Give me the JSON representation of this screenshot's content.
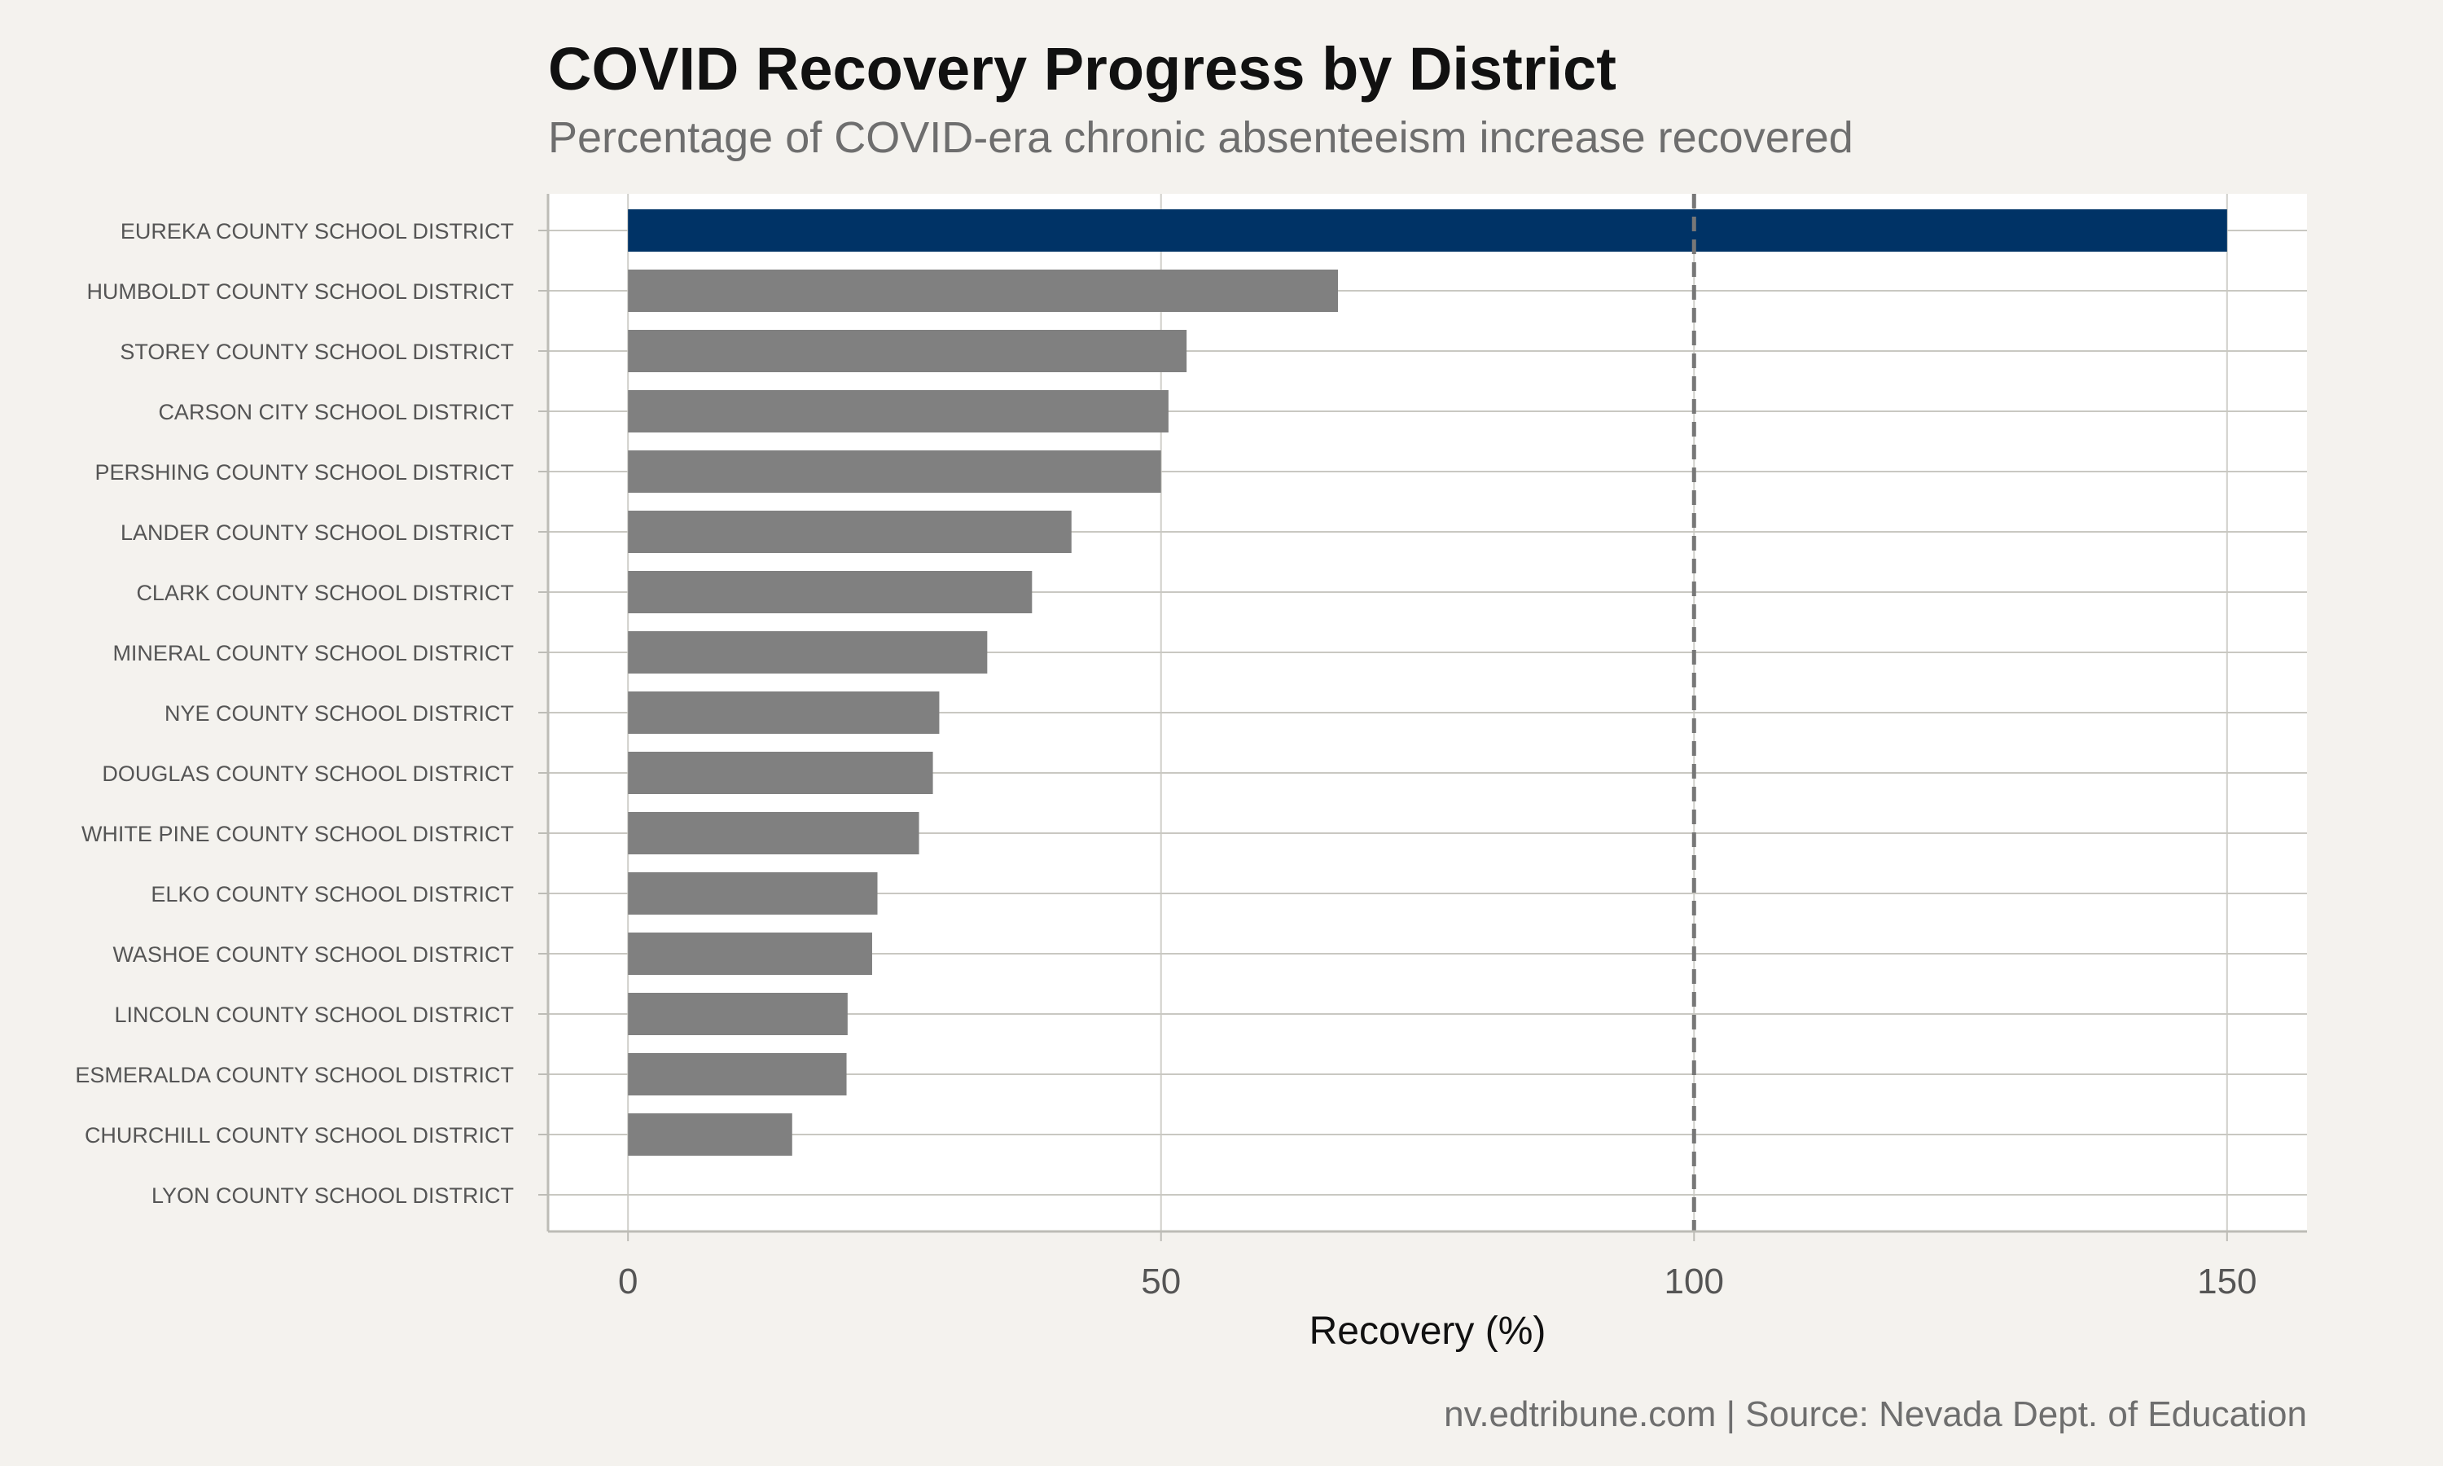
{
  "chart_data": {
    "type": "bar",
    "orientation": "horizontal",
    "title": "COVID Recovery Progress by District",
    "subtitle": "Percentage of COVID-era chronic absenteeism increase recovered",
    "xlabel": "Recovery (%)",
    "ylabel": "",
    "caption": "nv.edtribune.com | Source: Nevada Dept. of Education",
    "xlim": [
      -7.5,
      157.5
    ],
    "x_ticks": [
      0,
      50,
      100,
      150
    ],
    "reference_line": 100,
    "grid": true,
    "legend": "none",
    "highlight_color": "#003366",
    "bar_color": "#808080",
    "categories": [
      "EUREKA COUNTY SCHOOL DISTRICT",
      "HUMBOLDT COUNTY SCHOOL DISTRICT",
      "STOREY COUNTY SCHOOL DISTRICT",
      "CARSON CITY SCHOOL DISTRICT",
      "PERSHING COUNTY SCHOOL DISTRICT",
      "LANDER COUNTY SCHOOL DISTRICT",
      "CLARK COUNTY SCHOOL DISTRICT",
      "MINERAL COUNTY SCHOOL DISTRICT",
      "NYE COUNTY SCHOOL DISTRICT",
      "DOUGLAS COUNTY SCHOOL DISTRICT",
      "WHITE PINE COUNTY SCHOOL DISTRICT",
      "ELKO COUNTY SCHOOL DISTRICT",
      "WASHOE COUNTY SCHOOL DISTRICT",
      "LINCOLN COUNTY SCHOOL DISTRICT",
      "ESMERALDA COUNTY SCHOOL DISTRICT",
      "CHURCHILL COUNTY SCHOOL DISTRICT",
      "LYON COUNTY SCHOOL DISTRICT"
    ],
    "values": [
      150,
      66.6,
      52.4,
      50.7,
      50.0,
      41.6,
      37.9,
      33.7,
      29.2,
      28.6,
      27.3,
      23.4,
      22.9,
      20.6,
      20.5,
      15.4,
      0
    ],
    "highlighted": [
      "EUREKA COUNTY SCHOOL DISTRICT"
    ]
  }
}
